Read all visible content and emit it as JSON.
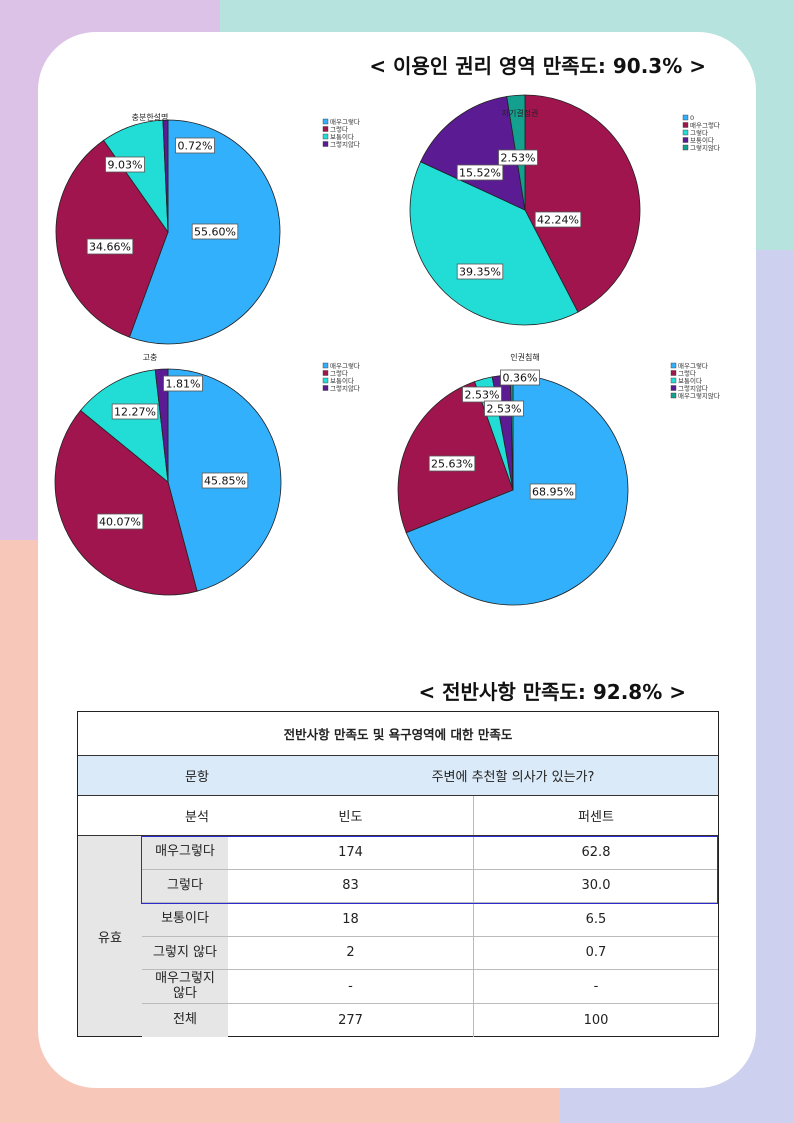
{
  "section1_title": "< 이용인 권리 영역 만족도: 90.3% >",
  "section2_title": "< 전반사항 만족도: 92.8% >",
  "colors": {
    "light_blue": "#33b0fb",
    "crimson": "#a0154e",
    "cyan": "#22dcd6",
    "purple": "#5b1b92",
    "teal": "#14a08e"
  },
  "chart_data": [
    {
      "type": "pie",
      "title": "충분한설명",
      "legend": [
        "매우그렇다",
        "그렇다",
        "보통이다",
        "그렇지않다"
      ],
      "slices": [
        {
          "label": "55.60%",
          "value": 55.6,
          "color": "#33b0fb"
        },
        {
          "label": "34.66%",
          "value": 34.66,
          "color": "#a0154e"
        },
        {
          "label": "9.03%",
          "value": 9.03,
          "color": "#22dcd6"
        },
        {
          "label": "0.72%",
          "value": 0.72,
          "color": "#5b1b92"
        }
      ]
    },
    {
      "type": "pie",
      "title": "자기결정권",
      "legend": [
        "0",
        "매우그렇다",
        "그렇다",
        "보통이다",
        "그렇지않다"
      ],
      "slices": [
        {
          "label": "42.24%",
          "value": 42.24,
          "color": "#a0154e"
        },
        {
          "label": "39.35%",
          "value": 39.35,
          "color": "#22dcd6"
        },
        {
          "label": "15.52%",
          "value": 15.52,
          "color": "#5b1b92"
        },
        {
          "label": "2.53%",
          "value": 2.53,
          "color": "#14a08e"
        }
      ]
    },
    {
      "type": "pie",
      "title": "고충",
      "legend": [
        "매우그렇다",
        "그렇다",
        "보통이다",
        "그렇지않다"
      ],
      "slices": [
        {
          "label": "45.85%",
          "value": 45.85,
          "color": "#33b0fb"
        },
        {
          "label": "40.07%",
          "value": 40.07,
          "color": "#a0154e"
        },
        {
          "label": "12.27%",
          "value": 12.27,
          "color": "#22dcd6"
        },
        {
          "label": "1.81%",
          "value": 1.81,
          "color": "#5b1b92"
        }
      ]
    },
    {
      "type": "pie",
      "title": "인권침해",
      "legend": [
        "매우그렇다",
        "그렇다",
        "보통이다",
        "그렇지않다",
        "매우그렇지않다"
      ],
      "slices": [
        {
          "label": "68.95%",
          "value": 68.95,
          "color": "#33b0fb"
        },
        {
          "label": "25.63%",
          "value": 25.63,
          "color": "#a0154e"
        },
        {
          "label": "2.53%",
          "value": 2.53,
          "color": "#22dcd6"
        },
        {
          "label": "2.53%",
          "value": 2.53,
          "color": "#5b1b92"
        },
        {
          "label": "0.36%",
          "value": 0.36,
          "color": "#14a08e"
        }
      ]
    }
  ],
  "table": {
    "title": "전반사항 만족도 및 욕구영역에 대한 만족도",
    "question_label": "문항",
    "question": "주변에 추천할 의사가 있는가?",
    "analysis_label": "분석",
    "col_freq": "빈도",
    "col_pct": "퍼센트",
    "valid_label": "유효",
    "rows": [
      {
        "label": "매우그렇다",
        "freq": "174",
        "pct": "62.8"
      },
      {
        "label": "그렇다",
        "freq": "83",
        "pct": "30.0"
      },
      {
        "label": "보통이다",
        "freq": "18",
        "pct": "6.5"
      },
      {
        "label": "그렇지 않다",
        "freq": "2",
        "pct": "0.7"
      },
      {
        "label": "매우그렇지\n않다",
        "freq": "-",
        "pct": "-"
      },
      {
        "label": "전체",
        "freq": "277",
        "pct": "100"
      }
    ]
  }
}
